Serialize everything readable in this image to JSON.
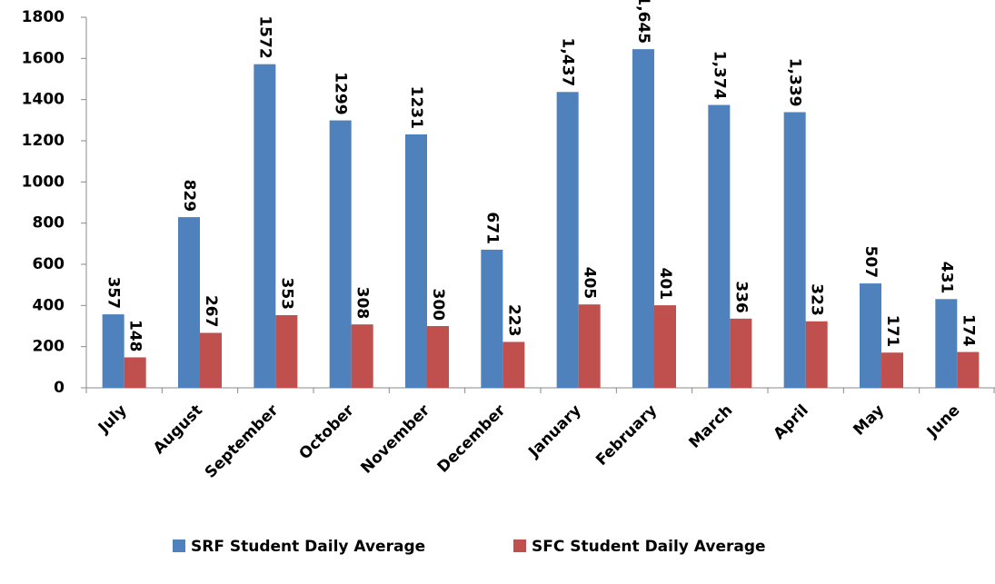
{
  "chart_data": {
    "type": "bar",
    "categories": [
      "July",
      "August",
      "September",
      "October",
      "November",
      "December",
      "January",
      "February",
      "March",
      "April",
      "May",
      "June"
    ],
    "series": [
      {
        "name": "SRF Student Daily Average",
        "color": "#4f81bd",
        "values": [
          357,
          829,
          1572,
          1299,
          1231,
          671,
          1437,
          1645,
          1374,
          1339,
          507,
          431
        ],
        "value_labels": [
          "357",
          "829",
          "1572",
          "1299",
          "1231",
          "671",
          "1,437",
          "1,645",
          "1,374",
          "1,339",
          "507",
          "431"
        ]
      },
      {
        "name": "SFC Student Daily Average",
        "color": "#c0504d",
        "values": [
          148,
          267,
          353,
          308,
          300,
          223,
          405,
          401,
          336,
          323,
          171,
          174
        ]
      }
    ],
    "ylim": [
      0,
      1800
    ],
    "yticks": [
      0,
      200,
      400,
      600,
      800,
      1000,
      1200,
      1400,
      1600,
      1800
    ],
    "legend": "bottom"
  }
}
